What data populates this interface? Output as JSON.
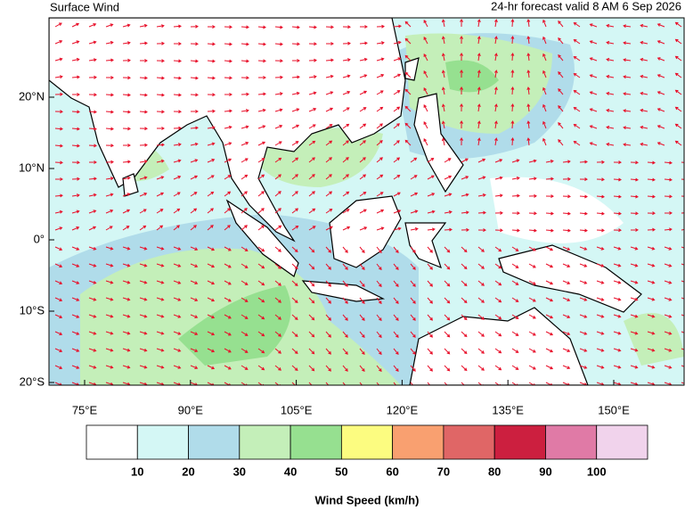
{
  "header": {
    "title": "Surface Wind",
    "subtitle": "24-hr forecast valid 8 AM 6 Sep 2026"
  },
  "map": {
    "lon_ticks": [
      {
        "value": 75,
        "label": "75°E"
      },
      {
        "value": 90,
        "label": "90°E"
      },
      {
        "value": 105,
        "label": "105°E"
      },
      {
        "value": 120,
        "label": "120°E"
      },
      {
        "value": 135,
        "label": "135°E"
      },
      {
        "value": 150,
        "label": "150°E"
      }
    ],
    "lat_ticks": [
      {
        "value": 20,
        "label": "20°N"
      },
      {
        "value": 10,
        "label": "10°N"
      },
      {
        "value": 0,
        "label": "0°"
      },
      {
        "value": -10,
        "label": "10°S"
      },
      {
        "value": -20,
        "label": "20°S"
      }
    ],
    "arrow_color": "#e8102a"
  },
  "legend": {
    "title": "Wind Speed (km/h)",
    "colors": [
      "#ffffff",
      "#d4f7f5",
      "#b0dcea",
      "#c4efb9",
      "#96e090",
      "#fcfc80",
      "#f9a070",
      "#e06666",
      "#cc1f3f",
      "#e07aa6",
      "#f1d3ec"
    ],
    "labels": [
      10,
      20,
      30,
      40,
      50,
      60,
      70,
      80,
      90,
      100
    ]
  }
}
